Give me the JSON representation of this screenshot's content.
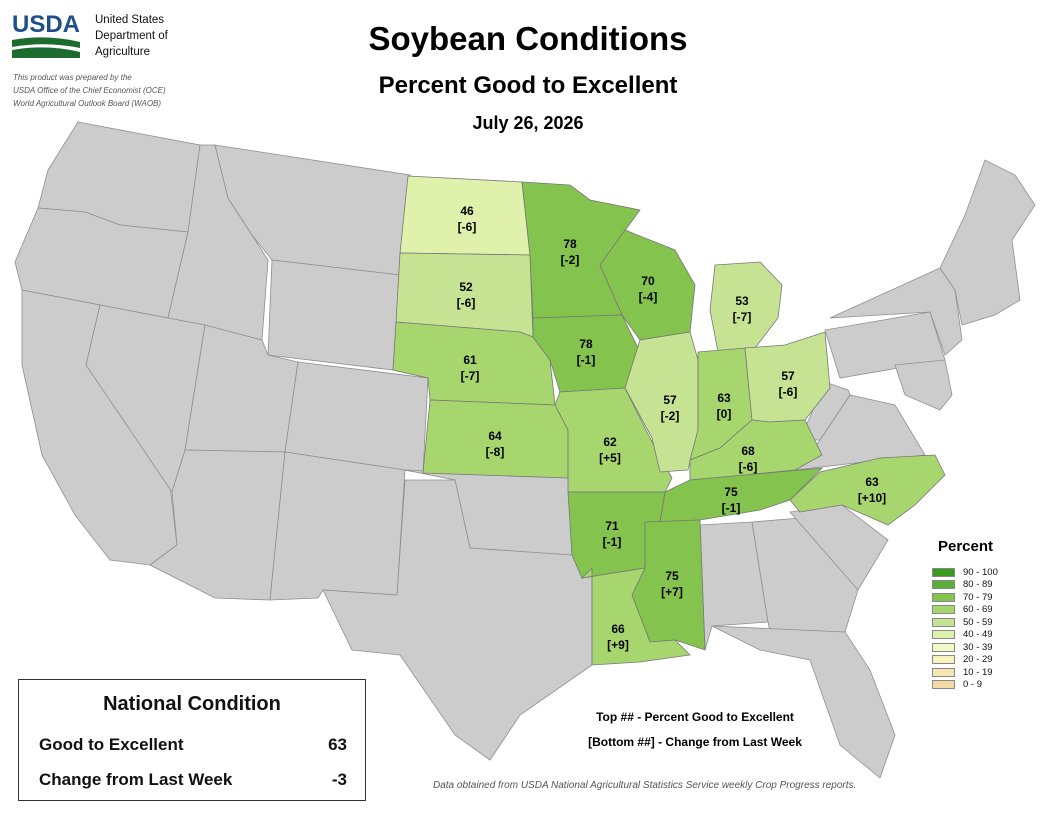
{
  "header": {
    "logo_text": "USDA",
    "agency_lines": [
      "United States",
      "Department of",
      "Agriculture"
    ],
    "prepared_lines": [
      "This product was prepared by the",
      "USDA Office of the Chief Economist (OCE)",
      "World Agricultural Outlook Board (WAOB)"
    ],
    "title": "Soybean Conditions",
    "subtitle": "Percent Good to Excellent",
    "date": "July 26, 2026"
  },
  "legend": {
    "title": "Percent",
    "items": [
      {
        "label": "90 - 100",
        "color": "#3a9a1e"
      },
      {
        "label": "80 - 89",
        "color": "#5aaf38"
      },
      {
        "label": "70 - 79",
        "color": "#84c44e"
      },
      {
        "label": "60 - 69",
        "color": "#a8d66e"
      },
      {
        "label": "50 - 59",
        "color": "#c6e394"
      },
      {
        "label": "40 - 49",
        "color": "#e0f1ac"
      },
      {
        "label": "30 - 39",
        "color": "#f5f7c4"
      },
      {
        "label": "20 - 29",
        "color": "#fbf3bd"
      },
      {
        "label": "10 - 19",
        "color": "#f8e6b2"
      },
      {
        "label": "0 - 9",
        "color": "#f3d9a2"
      }
    ]
  },
  "national": {
    "title": "National Condition",
    "good_label": "Good to Excellent",
    "good_value": "63",
    "change_label": "Change from Last Week",
    "change_value": "-3"
  },
  "explanation": {
    "line1": "Top ## - Percent Good to Excellent",
    "line2": "[Bottom ##] - Change from Last Week"
  },
  "source": "Data obtained from USDA National Agricultural Statistics Service weekly Crop Progress reports.",
  "states": [
    {
      "name": "North Dakota",
      "value": "46",
      "change": "[-6]",
      "color": "#e0f1ac"
    },
    {
      "name": "South Dakota",
      "value": "52",
      "change": "[-6]",
      "color": "#c6e394"
    },
    {
      "name": "Nebraska",
      "value": "61",
      "change": "[-7]",
      "color": "#a8d66e"
    },
    {
      "name": "Kansas",
      "value": "64",
      "change": "[-8]",
      "color": "#a8d66e"
    },
    {
      "name": "Minnesota",
      "value": "78",
      "change": "[-2]",
      "color": "#84c44e"
    },
    {
      "name": "Iowa",
      "value": "78",
      "change": "[-1]",
      "color": "#84c44e"
    },
    {
      "name": "Wisconsin",
      "value": "70",
      "change": "[-4]",
      "color": "#84c44e"
    },
    {
      "name": "Missouri",
      "value": "62",
      "change": "[+5]",
      "color": "#a8d66e"
    },
    {
      "name": "Illinois",
      "value": "57",
      "change": "[-2]",
      "color": "#c6e394"
    },
    {
      "name": "Michigan",
      "value": "53",
      "change": "[-7]",
      "color": "#c6e394"
    },
    {
      "name": "Indiana",
      "value": "63",
      "change": "[0]",
      "color": "#a8d66e"
    },
    {
      "name": "Ohio",
      "value": "57",
      "change": "[-6]",
      "color": "#c6e394"
    },
    {
      "name": "Kentucky",
      "value": "68",
      "change": "[-6]",
      "color": "#a8d66e"
    },
    {
      "name": "Tennessee",
      "value": "75",
      "change": "[-1]",
      "color": "#84c44e"
    },
    {
      "name": "Arkansas",
      "value": "71",
      "change": "[-1]",
      "color": "#84c44e"
    },
    {
      "name": "Mississippi",
      "value": "75",
      "change": "[+7]",
      "color": "#84c44e"
    },
    {
      "name": "Louisiana",
      "value": "66",
      "change": "[+9]",
      "color": "#a8d66e"
    },
    {
      "name": "North Carolina",
      "value": "63",
      "change": "[+10]",
      "color": "#a8d66e"
    }
  ],
  "no_data_color": "#cccccc"
}
